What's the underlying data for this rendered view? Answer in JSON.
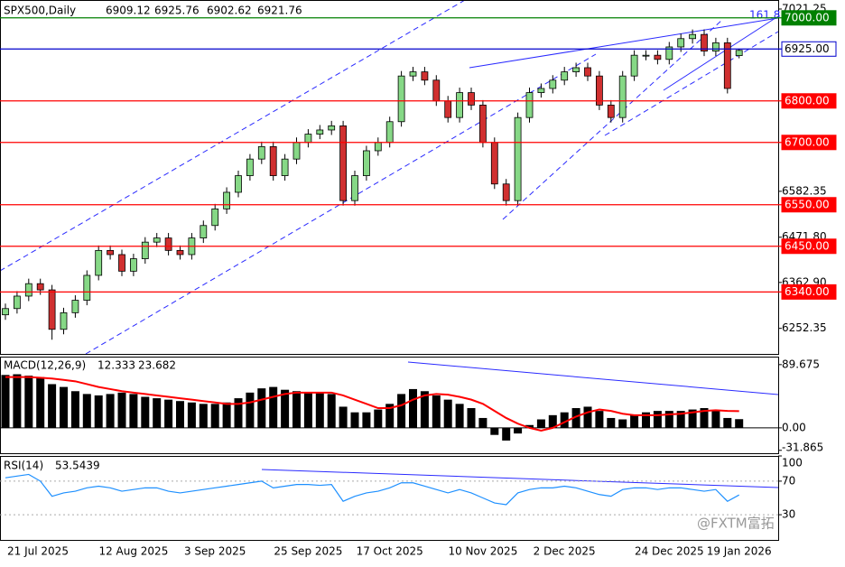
{
  "chart_data": [
    {
      "type": "candlestick",
      "title": "SPX500,Daily",
      "categories": [
        null,
        null,
        "21 Jul 2025",
        null,
        null,
        null,
        null,
        null,
        null,
        null,
        null,
        "12 Aug 2025",
        null,
        null,
        null,
        null,
        null,
        null,
        "3 Sep 2025",
        null,
        null,
        null,
        null,
        null,
        null,
        null,
        "25 Sep 2025",
        null,
        null,
        null,
        null,
        null,
        null,
        "17 Oct 2025",
        null,
        null,
        null,
        null,
        null,
        null,
        null,
        "10 Nov 2025",
        null,
        null,
        null,
        null,
        null,
        null,
        "2 Dec 2025",
        null,
        null,
        null,
        null,
        null,
        null,
        null,
        null,
        "24 Dec 2025",
        null,
        null,
        null,
        null,
        null,
        "19 Jan 2026"
      ],
      "open": [
        6285,
        6300,
        6330,
        6360,
        6345,
        6250,
        6290,
        6320,
        6380,
        6440,
        6430,
        6390,
        6420,
        6460,
        6470,
        6440,
        6430,
        6470,
        6500,
        6540,
        6580,
        6620,
        6660,
        6690,
        6620,
        6660,
        6700,
        6720,
        6730,
        6740,
        6560,
        6620,
        6680,
        6700,
        6750,
        6860,
        6870,
        6850,
        6800,
        6760,
        6820,
        6790,
        6700,
        6600,
        6560,
        6760,
        6820,
        6830,
        6850,
        6870,
        6880,
        6860,
        6790,
        6760,
        6860,
        6910,
        6910,
        6900,
        6930,
        6950,
        6960,
        6920,
        6940,
        6909.12
      ],
      "high": [
        6312,
        6342,
        6372,
        6372,
        6357,
        6302,
        6332,
        6392,
        6452,
        6452,
        6442,
        6432,
        6472,
        6482,
        6482,
        6452,
        6482,
        6512,
        6552,
        6592,
        6632,
        6672,
        6702,
        6702,
        6672,
        6712,
        6732,
        6742,
        6752,
        6752,
        6632,
        6692,
        6712,
        6762,
        6872,
        6882,
        6882,
        6862,
        6812,
        6832,
        6832,
        6802,
        6712,
        6612,
        6772,
        6832,
        6842,
        6862,
        6882,
        6892,
        6892,
        6872,
        6802,
        6872,
        6922,
        6922,
        6922,
        6942,
        6962,
        6972,
        6972,
        6952,
        6952,
        6925.76
      ],
      "low": [
        6273,
        6288,
        6318,
        6333,
        6225,
        6238,
        6278,
        6308,
        6368,
        6418,
        6378,
        6378,
        6408,
        6448,
        6428,
        6418,
        6418,
        6458,
        6488,
        6528,
        6568,
        6608,
        6648,
        6608,
        6608,
        6648,
        6688,
        6708,
        6718,
        6548,
        6548,
        6608,
        6668,
        6688,
        6738,
        6848,
        6838,
        6788,
        6748,
        6748,
        6778,
        6688,
        6588,
        6548,
        6548,
        6748,
        6808,
        6818,
        6838,
        6858,
        6848,
        6778,
        6748,
        6748,
        6848,
        6898,
        6888,
        6888,
        6918,
        6938,
        6908,
        6908,
        6818,
        6902.62
      ],
      "close": [
        6300,
        6330,
        6360,
        6345,
        6250,
        6290,
        6320,
        6380,
        6440,
        6430,
        6390,
        6420,
        6460,
        6470,
        6440,
        6430,
        6470,
        6500,
        6540,
        6580,
        6620,
        6660,
        6690,
        6620,
        6660,
        6700,
        6720,
        6730,
        6740,
        6560,
        6620,
        6680,
        6700,
        6750,
        6860,
        6870,
        6850,
        6800,
        6760,
        6820,
        6790,
        6700,
        6600,
        6560,
        6760,
        6820,
        6830,
        6850,
        6870,
        6880,
        6860,
        6790,
        6760,
        6860,
        6910,
        6910,
        6900,
        6930,
        6950,
        6960,
        6920,
        6940,
        6830,
        6921.76
      ],
      "up_color": "#86d886",
      "down_color": "#d03030",
      "ylim": [
        6190.8,
        7043
      ],
      "yticks": [
        7021.25,
        6582.35,
        {
          "value": 6471.8,
          "label": "6471.80"
        },
        {
          "value": 6362.9,
          "label": "6362.90"
        },
        6252.35
      ],
      "levels": [
        {
          "value": 7000,
          "label": "7000.00",
          "color": "#008000",
          "fill": "#008000",
          "text_color": "#ffffff"
        },
        {
          "value": 6925,
          "label": "6925.00",
          "color": "#0000cc",
          "fill": "#ffffff",
          "text_color": "#000000"
        },
        {
          "value": 6800,
          "label": "6800.00",
          "color": "#ff0000",
          "fill": "#ff0000",
          "text_color": "#ffffff"
        },
        {
          "value": 6700,
          "label": "6700.00",
          "color": "#ff0000",
          "fill": "#ff0000",
          "text_color": "#ffffff"
        },
        {
          "value": 6550,
          "label": "6550.00",
          "color": "#ff0000",
          "fill": "#ff0000",
          "text_color": "#ffffff"
        },
        {
          "value": 6450,
          "label": "6450.00",
          "color": "#ff0000",
          "fill": "#ff0000",
          "text_color": "#ffffff"
        },
        {
          "value": 6340,
          "label": "6340.00",
          "color": "#ff0000",
          "fill": "#ff0000",
          "text_color": "#ffffff"
        }
      ],
      "annotation": "161.8"
    },
    {
      "type": "macd",
      "title": "MACD(12,26,9)",
      "values": [
        75,
        76,
        74,
        72,
        62,
        58,
        52,
        48,
        46,
        48,
        50,
        48,
        44,
        42,
        40,
        38,
        36,
        34,
        34,
        36,
        42,
        50,
        56,
        58,
        54,
        52,
        50,
        50,
        48,
        30,
        22,
        22,
        26,
        34,
        48,
        55,
        52,
        46,
        40,
        34,
        28,
        14,
        -10,
        -18,
        -8,
        4,
        12,
        18,
        22,
        28,
        30,
        24,
        14,
        12,
        18,
        22,
        24,
        24,
        24,
        26,
        28,
        25,
        14,
        12.333
      ],
      "signal": [
        72,
        72,
        72,
        71,
        70,
        68,
        66,
        62,
        58,
        55,
        52,
        50,
        48,
        46,
        44,
        42,
        40,
        38,
        36,
        34,
        34,
        36,
        40,
        44,
        48,
        50,
        50,
        50,
        50,
        46,
        40,
        34,
        28,
        28,
        32,
        40,
        46,
        48,
        47,
        44,
        40,
        34,
        24,
        14,
        6,
        0,
        -4,
        0,
        8,
        16,
        22,
        26,
        24,
        20,
        18,
        18,
        18,
        19,
        20,
        22,
        24,
        25,
        24,
        23.682
      ],
      "color": "#000000",
      "signal_color": "#ff0000",
      "ylim": [
        -36,
        101
      ],
      "yticks": [
        89.675,
        {
          "value": 0,
          "label": "0.00"
        },
        -31.865
      ]
    },
    {
      "type": "line",
      "title": "RSI(14)",
      "values": [
        74,
        76,
        78,
        70,
        52,
        56,
        58,
        62,
        64,
        62,
        58,
        60,
        62,
        62,
        58,
        56,
        58,
        60,
        62,
        64,
        66,
        68,
        70,
        62,
        64,
        66,
        66,
        65,
        66,
        46,
        52,
        56,
        58,
        62,
        68,
        68,
        64,
        60,
        56,
        60,
        56,
        50,
        44,
        42,
        56,
        60,
        62,
        62,
        64,
        62,
        58,
        54,
        52,
        60,
        62,
        62,
        60,
        62,
        62,
        60,
        58,
        60,
        46,
        53.5439
      ],
      "color": "#1e90ff",
      "ylim": [
        0,
        100
      ],
      "yticks": [
        100,
        70,
        30
      ]
    }
  ],
  "watermark": "@FXTM富拓"
}
